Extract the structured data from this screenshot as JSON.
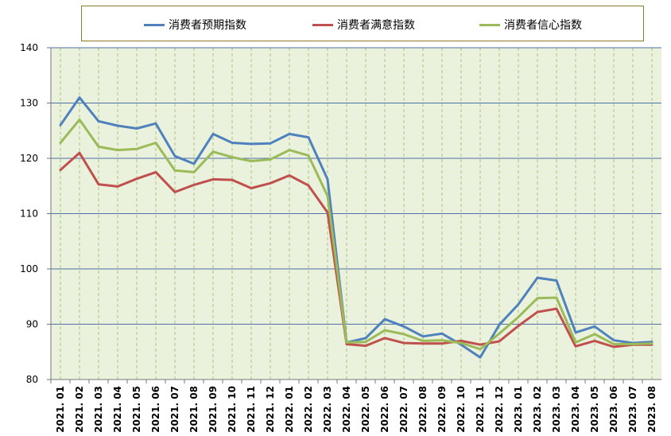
{
  "chart_data": {
    "type": "line",
    "title": "",
    "xlabel": "",
    "ylabel": "",
    "ylim": [
      80,
      140
    ],
    "yticks": [
      80,
      90,
      100,
      110,
      120,
      130,
      140
    ],
    "grid": true,
    "legend_position": "top",
    "plot_background": "#eaf1dd",
    "categories": [
      "2021. 01",
      "2021. 02",
      "2021. 03",
      "2021. 04",
      "2021. 05",
      "2021. 06",
      "2021. 07",
      "2021. 08",
      "2021. 09",
      "2021. 10",
      "2021. 11",
      "2021. 12",
      "2022. 01",
      "2022. 02",
      "2022. 03",
      "2022. 04",
      "2022. 05",
      "2022. 06",
      "2022. 07",
      "2022. 08",
      "2022. 09",
      "2022. 10",
      "2022. 11",
      "2022. 12",
      "2023. 01",
      "2023. 02",
      "2023. 03",
      "2023. 04",
      "2023. 05",
      "2023. 06",
      "2023. 07",
      "2023. 08"
    ],
    "series": [
      {
        "name": "消费者预期指数",
        "color": "#4f81bd",
        "values": [
          126.0,
          131.0,
          126.7,
          125.9,
          125.4,
          126.3,
          120.4,
          119.0,
          124.4,
          122.8,
          122.6,
          122.7,
          124.4,
          123.8,
          116.2,
          86.7,
          87.5,
          90.9,
          89.6,
          87.8,
          88.3,
          86.3,
          84.0,
          89.9,
          93.6,
          98.4,
          97.9,
          88.5,
          89.6,
          87.1,
          86.6,
          86.8
        ]
      },
      {
        "name": "消费者满意指数",
        "color": "#c0504d",
        "values": [
          117.9,
          121.0,
          115.3,
          114.9,
          116.3,
          117.5,
          113.9,
          115.2,
          116.2,
          116.1,
          114.6,
          115.5,
          116.9,
          115.1,
          110.2,
          86.4,
          86.1,
          87.5,
          86.6,
          86.5,
          86.5,
          87.0,
          86.3,
          86.9,
          89.7,
          92.2,
          92.8,
          86.0,
          87.0,
          85.9,
          86.3,
          86.3
        ]
      },
      {
        "name": "消费者信心指数",
        "color": "#9bbb59",
        "values": [
          122.8,
          127.0,
          122.1,
          121.5,
          121.7,
          122.8,
          117.8,
          117.5,
          121.2,
          120.2,
          119.5,
          119.8,
          121.5,
          120.5,
          113.2,
          86.7,
          86.8,
          88.9,
          88.2,
          87.0,
          87.1,
          86.6,
          85.5,
          88.3,
          91.3,
          94.7,
          94.8,
          86.7,
          88.2,
          86.4,
          86.4,
          86.5
        ]
      }
    ]
  }
}
